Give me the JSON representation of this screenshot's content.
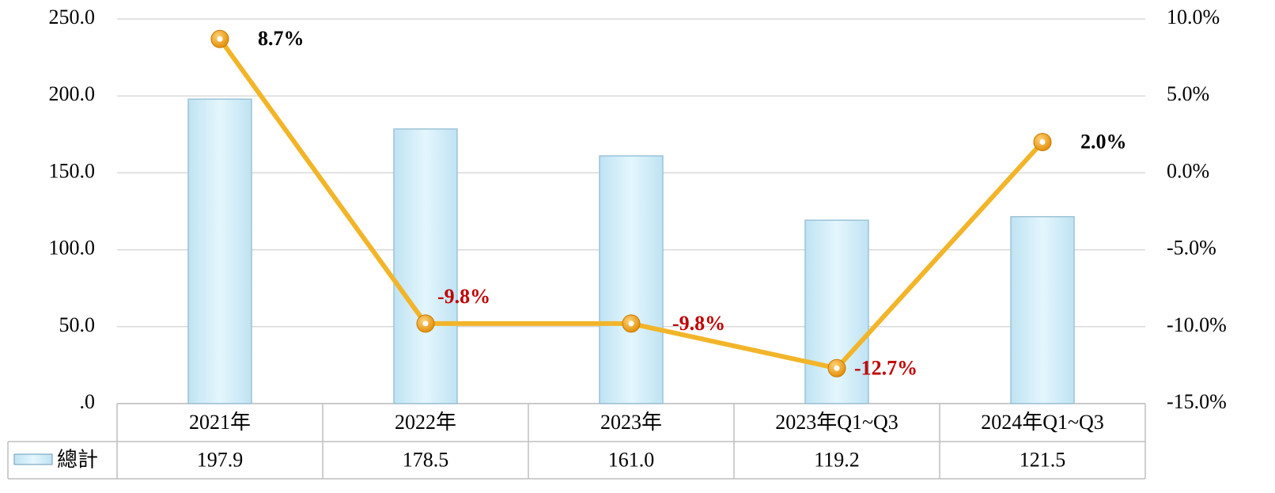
{
  "chart_data": {
    "type": "bar+line",
    "categories": [
      "2021年",
      "2022年",
      "2023年",
      "2023年Q1~Q3",
      "2024年Q1~Q3"
    ],
    "series": [
      {
        "name": "總計",
        "type": "bar",
        "color": "#d3eefa",
        "values": [
          197.9,
          178.5,
          161.0,
          119.2,
          121.5
        ],
        "value_labels": [
          "197.9",
          "178.5",
          "161.0",
          "119.2",
          "121.5"
        ]
      },
      {
        "type": "line",
        "axis": "y2",
        "color": "#f2b52a",
        "values": [
          8.7,
          -9.8,
          -9.8,
          -12.7,
          2.0
        ],
        "value_labels": [
          "8.7%",
          "-9.8%",
          "-9.8%",
          "-12.7%",
          "2.0%"
        ]
      }
    ],
    "ylim": [
      0,
      250
    ],
    "yticks": [
      {
        "value": 0,
        "label": ".0"
      },
      {
        "value": 50,
        "label": "50.0"
      },
      {
        "value": 100,
        "label": "100.0"
      },
      {
        "value": 150,
        "label": "150.0"
      },
      {
        "value": 200,
        "label": "200.0"
      },
      {
        "value": 250,
        "label": "250.0"
      }
    ],
    "y2lim": [
      -15,
      10
    ],
    "y2ticks": [
      {
        "value": -15,
        "label": "-15.0%"
      },
      {
        "value": -10,
        "label": "-10.0%"
      },
      {
        "value": -5,
        "label": "-5.0%"
      },
      {
        "value": 0,
        "label": "0.0%"
      },
      {
        "value": 5,
        "label": "5.0%"
      },
      {
        "value": 10,
        "label": "10.0%"
      }
    ],
    "grid": true,
    "data_table": true
  }
}
